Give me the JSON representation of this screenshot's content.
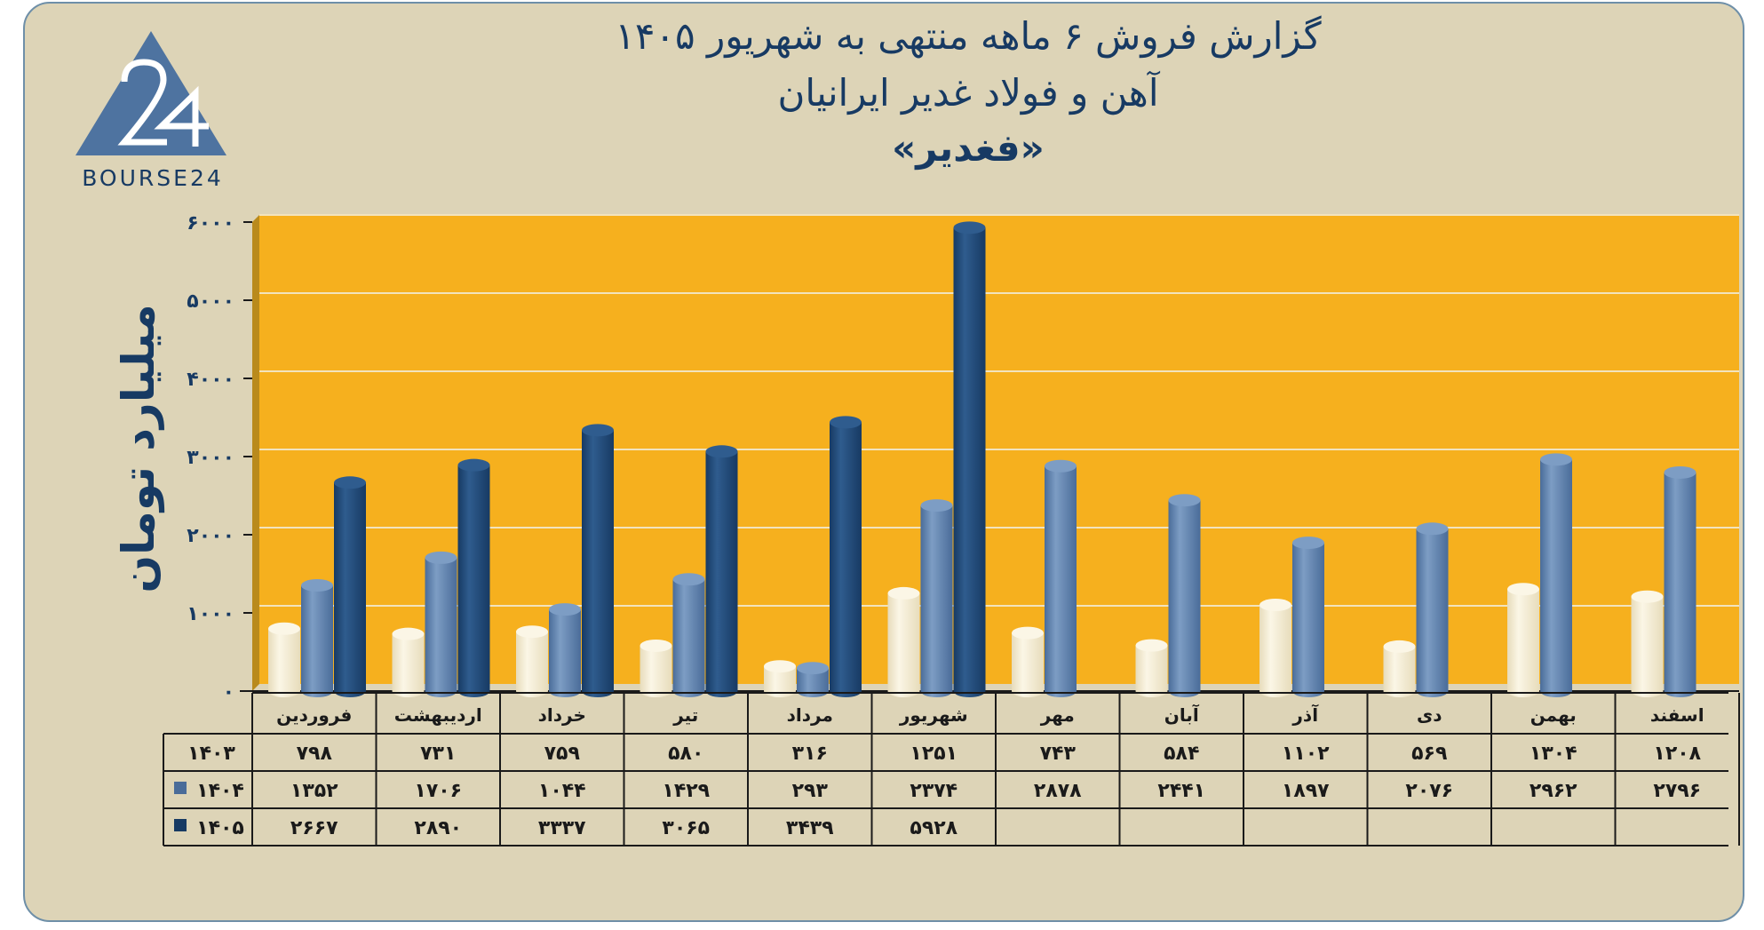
{
  "title": {
    "line1": "گزارش  فروش ۶ ماهه منتهی به شهریور ۱۴۰۵",
    "line2": "آهن و فولاد غدیر ایرانیان",
    "line3": "«فغدیر»"
  },
  "logo": {
    "mark": "24",
    "text": "BOURSE24"
  },
  "colors": {
    "card": "#ddd4b7",
    "plot": "#f6b01e",
    "series_1403": "#e7dcbb",
    "series_1404": "#4a6c99",
    "series_1405": "#173a63",
    "text": "#173a63"
  },
  "chart_data": {
    "type": "bar",
    "ylabel": "میلیارد تومان",
    "ylim": [
      0,
      6000
    ],
    "y_ticks": [
      0,
      1000,
      2000,
      3000,
      4000,
      5000,
      6000
    ],
    "y_tick_labels": [
      "۰",
      "۱۰۰۰",
      "۲۰۰۰",
      "۳۰۰۰",
      "۴۰۰۰",
      "۵۰۰۰",
      "۶۰۰۰"
    ],
    "grid": true,
    "legend": "table-bottom",
    "categories": [
      "فروردین",
      "اردیبهشت",
      "خرداد",
      "تیر",
      "مرداد",
      "شهریور",
      "مهر",
      "آبان",
      "آذر",
      "دی",
      "بهمن",
      "اسفند"
    ],
    "series": [
      {
        "name": "۱۴۰۳",
        "values": [
          798,
          731,
          759,
          580,
          316,
          1251,
          743,
          584,
          1102,
          569,
          1304,
          1208
        ],
        "labels": [
          "۷۹۸",
          "۷۳۱",
          "۷۵۹",
          "۵۸۰",
          "۳۱۶",
          "۱۲۵۱",
          "۷۴۳",
          "۵۸۴",
          "۱۱۰۲",
          "۵۶۹",
          "۱۳۰۴",
          "۱۲۰۸"
        ]
      },
      {
        "name": "۱۴۰۴",
        "values": [
          1352,
          1706,
          1044,
          1429,
          293,
          2374,
          2878,
          2441,
          1897,
          2076,
          2962,
          2796
        ],
        "labels": [
          "۱۳۵۲",
          "۱۷۰۶",
          "۱۰۴۴",
          "۱۴۲۹",
          "۲۹۳",
          "۲۳۷۴",
          "۲۸۷۸",
          "۲۴۴۱",
          "۱۸۹۷",
          "۲۰۷۶",
          "۲۹۶۲",
          "۲۷۹۶"
        ]
      },
      {
        "name": "۱۴۰۵",
        "values": [
          2667,
          2890,
          3337,
          3065,
          3439,
          5928,
          null,
          null,
          null,
          null,
          null,
          null
        ],
        "labels": [
          "۲۶۶۷",
          "۲۸۹۰",
          "۳۳۳۷",
          "۳۰۶۵",
          "۳۴۳۹",
          "۵۹۲۸",
          "",
          "",
          "",
          "",
          "",
          ""
        ]
      }
    ]
  }
}
